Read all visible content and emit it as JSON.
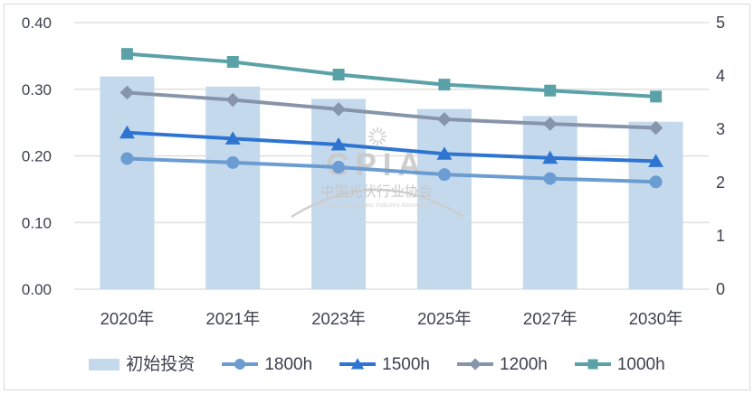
{
  "watermark": {
    "logo": "CPIA",
    "name_cn": "中国光伏行业协会",
    "name_en": "China Photovoltaic Industry Association"
  },
  "chart_data": {
    "type": "combo-bar-line",
    "title": "",
    "categories": [
      "2020年",
      "2021年",
      "2023年",
      "2025年",
      "2027年",
      "2030年"
    ],
    "bar_series": {
      "name": "初始投资",
      "axis": "right",
      "color": "#c5d9ed",
      "values": [
        3.99,
        3.8,
        3.57,
        3.38,
        3.25,
        3.14
      ]
    },
    "line_series": [
      {
        "name": "1800h",
        "axis": "left",
        "marker": "circle",
        "color": "#6b9cd2",
        "values": [
          0.196,
          0.19,
          0.183,
          0.172,
          0.166,
          0.161
        ]
      },
      {
        "name": "1500h",
        "axis": "left",
        "marker": "triangle",
        "color": "#2e75d2",
        "values": [
          0.235,
          0.226,
          0.217,
          0.203,
          0.197,
          0.192
        ]
      },
      {
        "name": "1200h",
        "axis": "left",
        "marker": "diamond",
        "color": "#8695aa",
        "values": [
          0.295,
          0.284,
          0.27,
          0.255,
          0.248,
          0.242
        ]
      },
      {
        "name": "1000h",
        "axis": "left",
        "marker": "square",
        "color": "#5aa2a7",
        "values": [
          0.353,
          0.341,
          0.322,
          0.307,
          0.298,
          0.289
        ]
      }
    ],
    "left_axis": {
      "min": 0,
      "max": 0.4,
      "ticks": [
        "0.00",
        "0.10",
        "0.20",
        "0.30",
        "0.40"
      ]
    },
    "right_axis": {
      "min": 0,
      "max": 5,
      "ticks": [
        "0",
        "1",
        "2",
        "3",
        "4",
        "5"
      ]
    },
    "grid": true,
    "legend_position": "bottom",
    "colors": {
      "grid": "#d9d9d9",
      "axis_text": "#3d414e",
      "watermark": "#c9c9c9"
    }
  }
}
